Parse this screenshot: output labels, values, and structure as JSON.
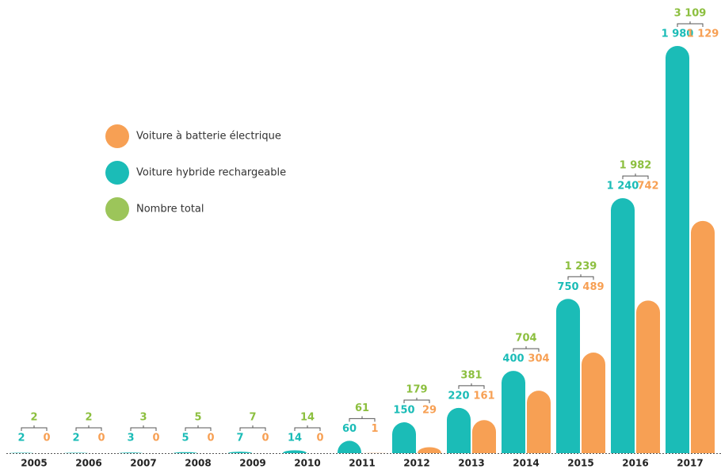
{
  "chart_data": {
    "type": "bar",
    "categories": [
      "2005",
      "2006",
      "2007",
      "2008",
      "2009",
      "2010",
      "2011",
      "2012",
      "2013",
      "2014",
      "2015",
      "2016",
      "2017"
    ],
    "series": [
      {
        "name": "Voiture hybride rechargeable",
        "color": "#1bbcb7",
        "values": [
          2,
          2,
          3,
          5,
          7,
          14,
          60,
          150,
          220,
          400,
          750,
          1240,
          1980
        ],
        "value_labels": [
          "2",
          "2",
          "3",
          "5",
          "7",
          "14",
          "60",
          "150",
          "220",
          "400",
          "750",
          "1 240",
          "1 980"
        ]
      },
      {
        "name": "Voiture à batterie électrique",
        "color": "#f7a054",
        "values": [
          0,
          0,
          0,
          0,
          0,
          0,
          1,
          29,
          161,
          304,
          489,
          742,
          1129
        ],
        "value_labels": [
          "0",
          "0",
          "0",
          "0",
          "0",
          "0",
          "1",
          "29",
          "161",
          "304",
          "489",
          "742",
          "1 129"
        ]
      },
      {
        "name": "Nombre total",
        "color": "#9cc55a",
        "values": [
          2,
          2,
          3,
          5,
          7,
          14,
          61,
          179,
          381,
          704,
          1239,
          1982,
          3109
        ],
        "value_labels": [
          "2",
          "2",
          "3",
          "5",
          "7",
          "14",
          "61",
          "179",
          "381",
          "704",
          "1 239",
          "1 982",
          "3 109"
        ]
      }
    ],
    "legend_order": [
      1,
      0,
      2
    ]
  }
}
